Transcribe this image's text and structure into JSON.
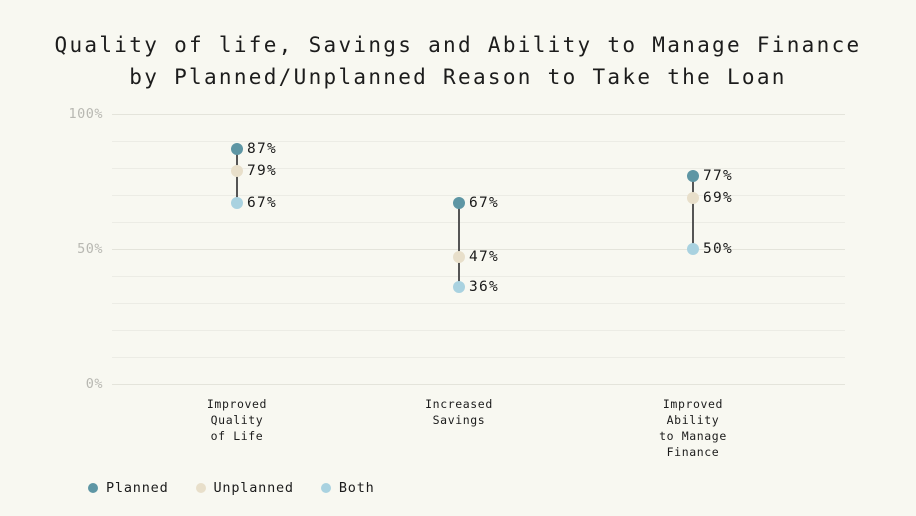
{
  "title": "Quality of life, Savings and Ability to Manage Finance\nby Planned/Unplanned Reason to Take the Loan",
  "colors": {
    "background": "#f8f8f1",
    "text": "#1c1c1c",
    "grid": "#ecece5",
    "grid_major": "#e4e4db",
    "axis_label": "#b8b8b2",
    "connector": "#555555",
    "planned": "#5e96a4",
    "unplanned": "#e8dfca",
    "both": "#a9d2e0"
  },
  "chart_data": {
    "type": "scatter",
    "subtype": "dot-plot-dumbbell",
    "title": "Quality of life, Savings and Ability to Manage Finance by Planned/Unplanned Reason to Take the Loan",
    "categories": [
      "Improved\nQuality\nof Life",
      "Increased\nSavings",
      "Improved\nAbility\nto Manage\nFinance"
    ],
    "series": [
      {
        "name": "Planned",
        "color": "#5e96a4",
        "values": [
          87,
          67,
          77
        ]
      },
      {
        "name": "Unplanned",
        "color": "#e8dfca",
        "values": [
          79,
          47,
          69
        ]
      },
      {
        "name": "Both",
        "color": "#a9d2e0",
        "values": [
          67,
          36,
          50
        ]
      }
    ],
    "value_suffix": "%",
    "xlabel": "",
    "ylabel": "",
    "ylim": [
      0,
      100
    ],
    "grid_step": 10,
    "grid": true,
    "y_ticks": [
      {
        "label": "100%",
        "value": 100
      },
      {
        "label": "50%",
        "value": 50
      },
      {
        "label": "0%",
        "value": 0
      }
    ],
    "legend_position": "bottom-left"
  }
}
